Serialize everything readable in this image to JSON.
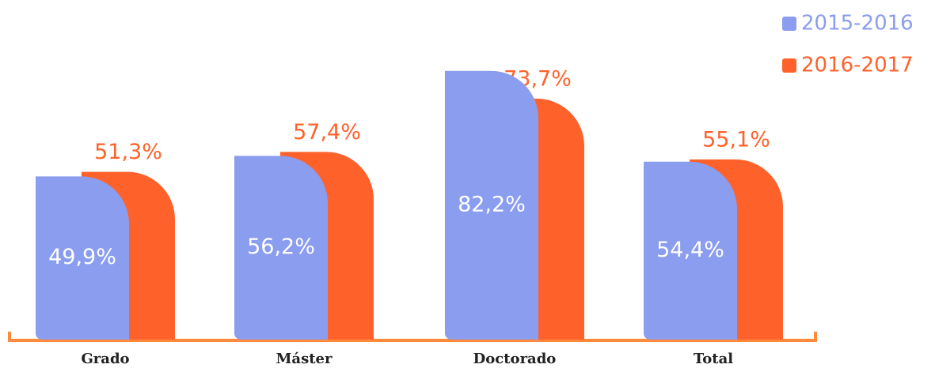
{
  "chart_data": {
    "type": "bar",
    "categories": [
      "Grado",
      "Máster",
      "Doctorado",
      "Total"
    ],
    "series": [
      {
        "name": "2015-2016",
        "color": "#8b9dee",
        "values": [
          49.9,
          56.2,
          82.2,
          54.4
        ],
        "value_labels": [
          "49,9%",
          "56,2%",
          "82,2%",
          "54,4%"
        ]
      },
      {
        "name": "2016-2017",
        "color": "#ff612b",
        "values": [
          51.3,
          57.4,
          73.7,
          55.1
        ],
        "value_labels": [
          "51,3%",
          "57,4%",
          "73,7%",
          "55,1%"
        ]
      }
    ],
    "ylim": [
      0,
      100
    ],
    "legend": "top-right"
  }
}
